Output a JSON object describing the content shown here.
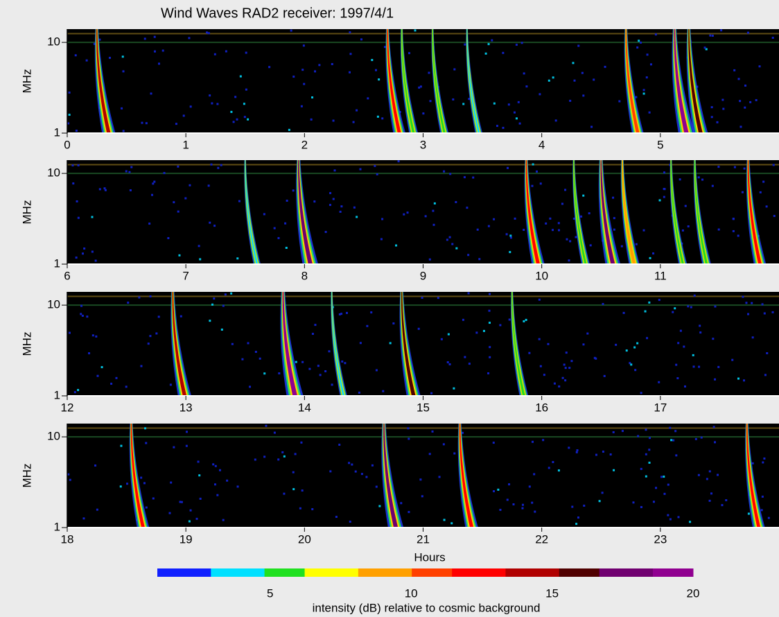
{
  "chart_data": {
    "type": "spectrogram",
    "title": "Wind Waves RAD2 receiver: 1997/4/1",
    "ylabel": "MHz",
    "xlabel": "Hours",
    "log_y": true,
    "ylim": [
      1,
      14
    ],
    "yticks": [
      1,
      10
    ],
    "panels": [
      {
        "xlim": [
          0,
          6
        ],
        "xticks": [
          0,
          1,
          2,
          3,
          4,
          5
        ],
        "bursts": [
          {
            "time": 0.25,
            "peak": 14
          },
          {
            "time": 2.7,
            "peak": 12
          },
          {
            "time": 2.82,
            "peak": 6
          },
          {
            "time": 3.08,
            "peak": 5
          },
          {
            "time": 3.37,
            "peak": 3
          },
          {
            "time": 4.71,
            "peak": 11
          },
          {
            "time": 5.12,
            "peak": 19
          },
          {
            "time": 5.24,
            "peak": 16
          }
        ]
      },
      {
        "xlim": [
          6,
          12
        ],
        "xticks": [
          6,
          7,
          8,
          9,
          10,
          11
        ],
        "bursts": [
          {
            "time": 7.5,
            "peak": 3
          },
          {
            "time": 7.95,
            "peak": 18
          },
          {
            "time": 9.87,
            "peak": 13
          },
          {
            "time": 10.27,
            "peak": 5
          },
          {
            "time": 10.5,
            "peak": 17
          },
          {
            "time": 10.68,
            "peak": 9
          },
          {
            "time": 11.09,
            "peak": 5
          },
          {
            "time": 11.29,
            "peak": 6
          },
          {
            "time": 11.74,
            "peak": 12
          }
        ]
      },
      {
        "xlim": [
          12,
          18
        ],
        "xticks": [
          12,
          13,
          14,
          15,
          16,
          17
        ],
        "bursts": [
          {
            "time": 12.89,
            "peak": 14
          },
          {
            "time": 13.82,
            "peak": 20
          },
          {
            "time": 14.23,
            "peak": 3
          },
          {
            "time": 14.82,
            "peak": 15
          },
          {
            "time": 15.75,
            "peak": 6
          }
        ]
      },
      {
        "xlim": [
          18,
          24
        ],
        "xticks": [
          18,
          19,
          20,
          21,
          22,
          23
        ],
        "bursts": [
          {
            "time": 18.54,
            "peak": 12
          },
          {
            "time": 20.67,
            "peak": 18
          },
          {
            "time": 21.31,
            "peak": 13
          },
          {
            "time": 23.73,
            "peak": 12
          }
        ]
      }
    ],
    "colorbar": {
      "label": "intensity (dB) relative to cosmic background",
      "clim": [
        1,
        20
      ],
      "ticks": [
        5,
        10,
        15,
        20
      ],
      "colors": [
        "#1020ff",
        "#00e0ff",
        "#20e020",
        "#ffff00",
        "#ffa000",
        "#ff4000",
        "#ff0000",
        "#b00000",
        "#500000",
        "#700070",
        "#900090"
      ]
    }
  }
}
